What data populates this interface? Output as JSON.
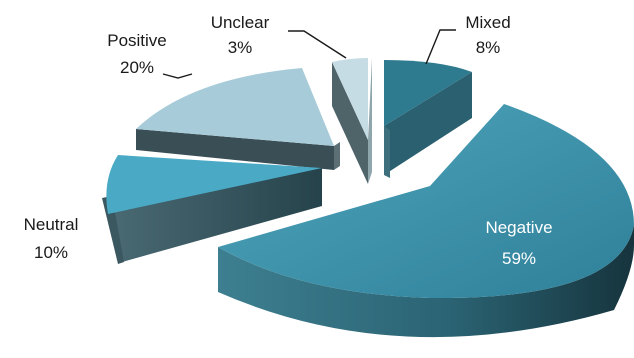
{
  "chart_data": {
    "type": "pie",
    "style": "3d-exploded",
    "title": "",
    "categories": [
      "Mixed",
      "Negative",
      "Neutral",
      "Positive",
      "Unclear"
    ],
    "values": [
      8,
      59,
      10,
      20,
      3
    ],
    "value_labels": [
      "8%",
      "59%",
      "10%",
      "20%",
      "3%"
    ],
    "colors": [
      "#2e7a8e",
      "#3a8fa6",
      "#4aaac6",
      "#a7cbd8",
      "#c6dce5"
    ],
    "legend": "none",
    "data_labels": "outside with leader lines; Negative inside"
  }
}
